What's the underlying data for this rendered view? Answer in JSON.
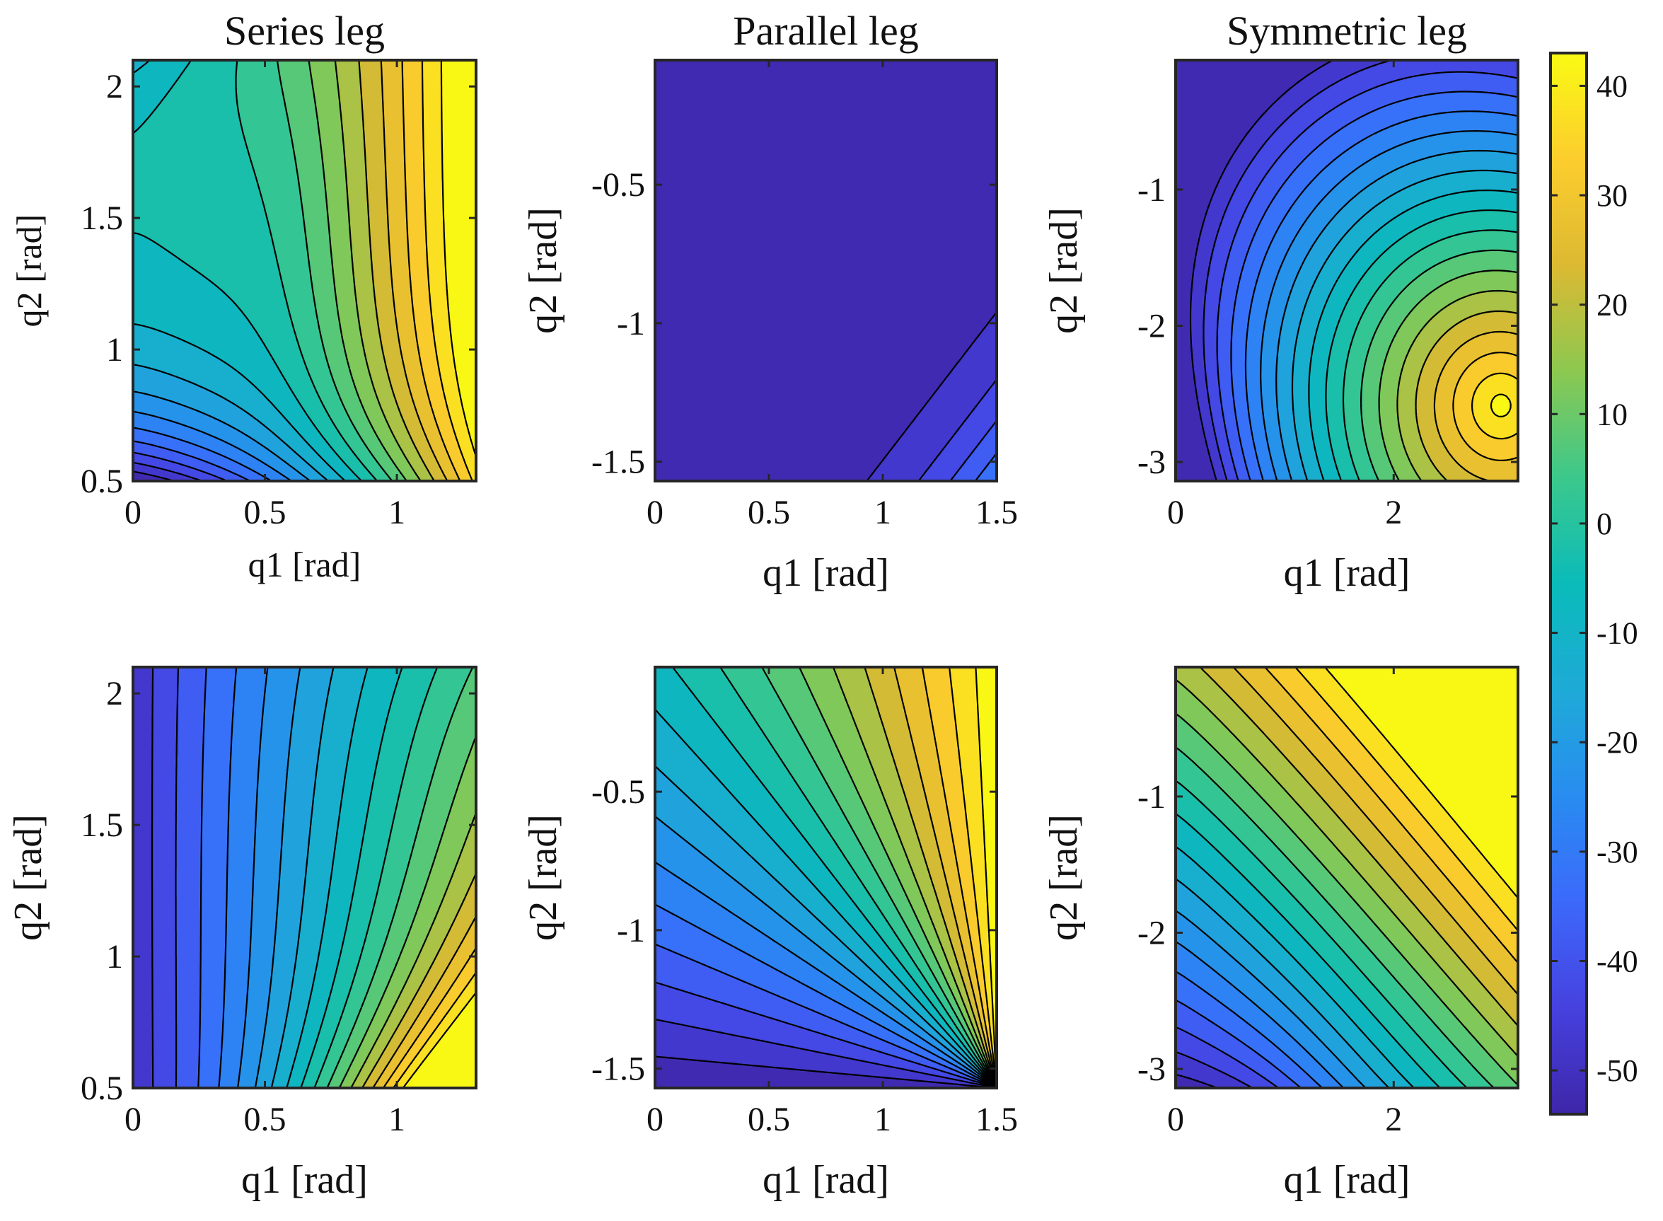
{
  "chart_data": {
    "type": "contourf",
    "colormap": "parula",
    "colorbar": {
      "vmin": -54,
      "vmax": 43,
      "ticks": [
        -50,
        -40,
        -30,
        -20,
        -10,
        0,
        10,
        20,
        30,
        40
      ],
      "tick_labels": [
        "-50",
        "-40",
        "-30",
        "-20",
        "-10",
        "0",
        "10",
        "20",
        "30",
        "40"
      ],
      "location": "right"
    },
    "contour_levels": [
      -50,
      -45,
      -40,
      -35,
      -30,
      -25,
      -20,
      -15,
      -10,
      -5,
      0,
      5,
      10,
      15,
      20,
      25,
      30,
      35,
      40
    ],
    "panels": [
      {
        "id": "series-top",
        "title": "Series leg",
        "xlabel": "q1 [rad]",
        "ylabel": "q2 [rad]",
        "xlim": [
          0,
          1.3
        ],
        "ylim": [
          0.5,
          2.1
        ],
        "xticks": [
          0,
          0.5,
          1
        ],
        "xtick_labels": [
          "0",
          "0.5",
          "1"
        ],
        "yticks": [
          0.5,
          1,
          1.5,
          2
        ],
        "ytick_labels": [
          "0.5",
          "1",
          "1.5",
          "2"
        ]
      },
      {
        "id": "parallel-top",
        "title": "Parallel leg",
        "xlabel": "q1 [rad]",
        "ylabel": "q2 [rad]",
        "xlim": [
          0,
          1.5
        ],
        "ylim": [
          -1.57,
          -0.05
        ],
        "xticks": [
          0,
          0.5,
          1,
          1.5
        ],
        "xtick_labels": [
          "0",
          "0.5",
          "1",
          "1.5"
        ],
        "yticks": [
          -1.5,
          -1,
          -0.5
        ],
        "ytick_labels": [
          "-1.5",
          "-1",
          "-0.5"
        ]
      },
      {
        "id": "symmetric-top",
        "title": "Symmetric leg",
        "xlabel": "q1 [rad]",
        "ylabel": "q2 [rad]",
        "xlim": [
          0,
          3.14
        ],
        "ylim": [
          -3.14,
          -0.05
        ],
        "xticks": [
          0,
          2
        ],
        "xtick_labels": [
          "0",
          "2"
        ],
        "yticks": [
          -3,
          -2,
          -1
        ],
        "ytick_labels": [
          "-3",
          "-2",
          "-1"
        ]
      },
      {
        "id": "series-bottom",
        "title": "",
        "xlabel": "q1 [rad]",
        "ylabel": "q2 [rad]",
        "xlim": [
          0,
          1.3
        ],
        "ylim": [
          0.5,
          2.1
        ],
        "xticks": [
          0,
          0.5,
          1
        ],
        "xtick_labels": [
          "0",
          "0.5",
          "1"
        ],
        "yticks": [
          0.5,
          1,
          1.5,
          2
        ],
        "ytick_labels": [
          "0.5",
          "1",
          "1.5",
          "2"
        ]
      },
      {
        "id": "parallel-bottom",
        "title": "",
        "xlabel": "q1 [rad]",
        "ylabel": "q2 [rad]",
        "xlim": [
          0,
          1.5
        ],
        "ylim": [
          -1.57,
          -0.05
        ],
        "xticks": [
          0,
          0.5,
          1,
          1.5
        ],
        "xtick_labels": [
          "0",
          "0.5",
          "1",
          "1.5"
        ],
        "yticks": [
          -1.5,
          -1,
          -0.5
        ],
        "ytick_labels": [
          "-1.5",
          "-1",
          "-0.5"
        ]
      },
      {
        "id": "symmetric-bottom",
        "title": "",
        "xlabel": "q1 [rad]",
        "ylabel": "q2 [rad]",
        "xlim": [
          0,
          3.14
        ],
        "ylim": [
          -3.14,
          -0.05
        ],
        "xticks": [
          0,
          2
        ],
        "xtick_labels": [
          "0",
          "2"
        ],
        "yticks": [
          -3,
          -2,
          -1
        ],
        "ytick_labels": [
          "-3",
          "-2",
          "-1"
        ]
      }
    ]
  }
}
